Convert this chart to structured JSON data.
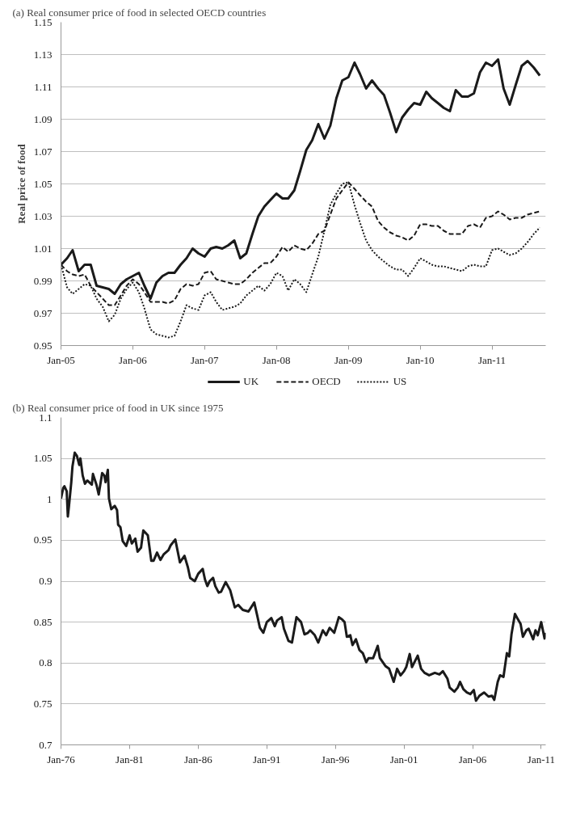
{
  "chart_data": [
    {
      "type": "line",
      "title": "(a) Real consumer price of food in selected OECD countries",
      "ylabel": "Real price of food",
      "x": [
        "2005-01",
        "2005-02",
        "2005-03",
        "2005-04",
        "2005-05",
        "2005-06",
        "2005-07",
        "2005-08",
        "2005-09",
        "2005-10",
        "2005-11",
        "2005-12",
        "2006-01",
        "2006-02",
        "2006-03",
        "2006-04",
        "2006-05",
        "2006-06",
        "2006-07",
        "2006-08",
        "2006-09",
        "2006-10",
        "2006-11",
        "2006-12",
        "2007-01",
        "2007-02",
        "2007-03",
        "2007-04",
        "2007-05",
        "2007-06",
        "2007-07",
        "2007-08",
        "2007-09",
        "2007-10",
        "2007-11",
        "2007-12",
        "2008-01",
        "2008-02",
        "2008-03",
        "2008-04",
        "2008-05",
        "2008-06",
        "2008-07",
        "2008-08",
        "2008-09",
        "2008-10",
        "2008-11",
        "2008-12",
        "2009-01",
        "2009-02",
        "2009-03",
        "2009-04",
        "2009-05",
        "2009-06",
        "2009-07",
        "2009-08",
        "2009-09",
        "2009-10",
        "2009-11",
        "2009-12",
        "2010-01",
        "2010-02",
        "2010-03",
        "2010-04",
        "2010-05",
        "2010-06",
        "2010-07",
        "2010-08",
        "2010-09",
        "2010-10",
        "2010-11",
        "2010-12",
        "2011-01",
        "2011-02",
        "2011-03",
        "2011-04",
        "2011-05",
        "2011-06",
        "2011-07",
        "2011-08",
        "2011-09"
      ],
      "series": [
        {
          "name": "UK",
          "color": "#1a1a1a",
          "line_style": "solid",
          "values": [
            1.0,
            1.004,
            1.009,
            0.996,
            1.0,
            1.0,
            0.987,
            0.986,
            0.985,
            0.982,
            0.988,
            0.991,
            0.993,
            0.995,
            0.987,
            0.979,
            0.989,
            0.993,
            0.995,
            0.995,
            1.0,
            1.004,
            1.01,
            1.007,
            1.005,
            1.01,
            1.011,
            1.01,
            1.012,
            1.015,
            1.004,
            1.007,
            1.019,
            1.03,
            1.036,
            1.04,
            1.044,
            1.041,
            1.041,
            1.046,
            1.058,
            1.071,
            1.077,
            1.087,
            1.078,
            1.086,
            1.103,
            1.114,
            1.116,
            1.125,
            1.118,
            1.109,
            1.114,
            1.109,
            1.105,
            1.094,
            1.082,
            1.091,
            1.096,
            1.1,
            1.099,
            1.107,
            1.103,
            1.1,
            1.097,
            1.095,
            1.108,
            1.104,
            1.104,
            1.106,
            1.119,
            1.125,
            1.123,
            1.127,
            1.109,
            1.099,
            1.111,
            1.123,
            1.126,
            1.122,
            1.117
          ]
        },
        {
          "name": "OECD",
          "color": "#1a1a1a",
          "line_style": "dashed",
          "values": [
            1.0,
            0.996,
            0.994,
            0.993,
            0.994,
            0.987,
            0.983,
            0.979,
            0.975,
            0.975,
            0.981,
            0.987,
            0.991,
            0.988,
            0.983,
            0.977,
            0.977,
            0.977,
            0.976,
            0.978,
            0.985,
            0.988,
            0.987,
            0.988,
            0.995,
            0.996,
            0.991,
            0.99,
            0.989,
            0.988,
            0.988,
            0.991,
            0.995,
            0.998,
            1.001,
            1.001,
            1.005,
            1.011,
            1.008,
            1.012,
            1.01,
            1.009,
            1.013,
            1.019,
            1.021,
            1.031,
            1.041,
            1.046,
            1.051,
            1.047,
            1.043,
            1.039,
            1.036,
            1.027,
            1.023,
            1.02,
            1.018,
            1.017,
            1.015,
            1.018,
            1.025,
            1.025,
            1.024,
            1.024,
            1.021,
            1.019,
            1.019,
            1.019,
            1.024,
            1.025,
            1.023,
            1.029,
            1.03,
            1.033,
            1.031,
            1.028,
            1.029,
            1.029,
            1.031,
            1.032,
            1.033
          ]
        },
        {
          "name": "US",
          "color": "#1a1a1a",
          "line_style": "dotted",
          "values": [
            1.0,
            0.986,
            0.982,
            0.985,
            0.988,
            0.987,
            0.979,
            0.974,
            0.965,
            0.969,
            0.979,
            0.985,
            0.989,
            0.983,
            0.973,
            0.96,
            0.957,
            0.956,
            0.955,
            0.956,
            0.965,
            0.975,
            0.973,
            0.972,
            0.981,
            0.983,
            0.977,
            0.972,
            0.973,
            0.974,
            0.976,
            0.981,
            0.984,
            0.987,
            0.984,
            0.988,
            0.995,
            0.993,
            0.984,
            0.991,
            0.988,
            0.983,
            0.994,
            1.005,
            1.021,
            1.037,
            1.044,
            1.05,
            1.051,
            1.037,
            1.026,
            1.015,
            1.009,
            1.005,
            1.002,
            0.999,
            0.997,
            0.997,
            0.993,
            0.998,
            1.004,
            1.002,
            1.0,
            0.999,
            0.999,
            0.998,
            0.997,
            0.996,
            0.999,
            1.0,
            0.999,
            0.999,
            1.009,
            1.01,
            1.008,
            1.006,
            1.007,
            1.01,
            1.014,
            1.019,
            1.023
          ]
        }
      ],
      "xlim": [
        "2005-01",
        "2011-10"
      ],
      "xticks": [
        {
          "value": "2005-01",
          "label": "Jan-05"
        },
        {
          "value": "2006-01",
          "label": "Jan-06"
        },
        {
          "value": "2007-01",
          "label": "Jan-07"
        },
        {
          "value": "2008-01",
          "label": "Jan-08"
        },
        {
          "value": "2009-01",
          "label": "Jan-09"
        },
        {
          "value": "2010-01",
          "label": "Jan-10"
        },
        {
          "value": "2011-01",
          "label": "Jan-11"
        }
      ],
      "ylim": [
        0.95,
        1.15
      ],
      "yticks": [
        0.95,
        0.97,
        0.99,
        1.01,
        1.03,
        1.05,
        1.07,
        1.09,
        1.11,
        1.13,
        1.15
      ],
      "grid": "y",
      "legend": "bottom"
    },
    {
      "type": "line",
      "title": "(b) Real consumer price of food in UK since 1975",
      "series": [
        {
          "color": "#1a1a1a",
          "line_style": "solid",
          "x": [
            "1976-01",
            "1976-03",
            "1976-04",
            "1976-06",
            "1976-07",
            "1976-08",
            "1976-10",
            "1976-11",
            "1977-01",
            "1977-03",
            "1977-05",
            "1977-06",
            "1977-08",
            "1977-10",
            "1977-12",
            "1978-04",
            "1978-05",
            "1978-08",
            "1978-10",
            "1979-01",
            "1979-03",
            "1979-04",
            "1979-06",
            "1979-07",
            "1979-09",
            "1979-12",
            "1980-02",
            "1980-03",
            "1980-05",
            "1980-07",
            "1980-10",
            "1981-01",
            "1981-03",
            "1981-06",
            "1981-08",
            "1981-11",
            "1982-01",
            "1982-05",
            "1982-08",
            "1982-10",
            "1983-01",
            "1983-04",
            "1983-07",
            "1983-11",
            "1984-01",
            "1984-05",
            "1984-09",
            "1985-01",
            "1985-04",
            "1985-06",
            "1985-10",
            "1986-01",
            "1986-05",
            "1986-07",
            "1986-09",
            "1986-11",
            "1987-02",
            "1987-04",
            "1987-07",
            "1987-09",
            "1988-01",
            "1988-05",
            "1988-09",
            "1988-12",
            "1989-04",
            "1989-09",
            "1990-02",
            "1990-05",
            "1990-07",
            "1990-10",
            "1991-01",
            "1991-05",
            "1991-08",
            "1991-10",
            "1992-02",
            "1992-04",
            "1992-08",
            "1992-11",
            "1993-03",
            "1993-07",
            "1993-10",
            "1994-01",
            "1994-03",
            "1994-07",
            "1994-10",
            "1995-02",
            "1995-05",
            "1995-08",
            "1995-12",
            "1996-04",
            "1996-07",
            "1996-09",
            "1996-11",
            "1997-02",
            "1997-04",
            "1997-07",
            "1997-10",
            "1998-01",
            "1998-04",
            "1998-06",
            "1998-10",
            "1999-02",
            "1999-04",
            "1999-09",
            "1999-12",
            "2000-04",
            "2000-07",
            "2000-10",
            "2001-01",
            "2001-03",
            "2001-06",
            "2001-08",
            "2002-01",
            "2002-04",
            "2002-07",
            "2002-11",
            "2003-04",
            "2003-08",
            "2003-11",
            "2004-03",
            "2004-05",
            "2004-09",
            "2004-12",
            "2005-02",
            "2005-05",
            "2005-08",
            "2005-11",
            "2006-02",
            "2006-04",
            "2006-07",
            "2006-11",
            "2007-03",
            "2007-06",
            "2007-08",
            "2007-11",
            "2008-01",
            "2008-04",
            "2008-07",
            "2008-09",
            "2008-11",
            "2009-02",
            "2009-04",
            "2009-07",
            "2009-09",
            "2009-12",
            "2010-02",
            "2010-06",
            "2010-08",
            "2010-10",
            "2011-01",
            "2011-04",
            "2011-05"
          ],
          "values": [
            1.001,
            1.014,
            1.016,
            1.01,
            0.979,
            0.992,
            1.021,
            1.04,
            1.057,
            1.053,
            1.042,
            1.05,
            1.029,
            1.019,
            1.023,
            1.018,
            1.031,
            1.018,
            1.006,
            1.032,
            1.029,
            1.021,
            1.036,
            1.001,
            0.988,
            0.992,
            0.987,
            0.969,
            0.966,
            0.949,
            0.943,
            0.956,
            0.946,
            0.952,
            0.936,
            0.941,
            0.962,
            0.956,
            0.925,
            0.925,
            0.935,
            0.926,
            0.933,
            0.938,
            0.944,
            0.951,
            0.923,
            0.931,
            0.917,
            0.904,
            0.9,
            0.909,
            0.915,
            0.902,
            0.894,
            0.9,
            0.904,
            0.894,
            0.886,
            0.887,
            0.899,
            0.889,
            0.868,
            0.871,
            0.865,
            0.863,
            0.874,
            0.856,
            0.843,
            0.837,
            0.85,
            0.855,
            0.845,
            0.852,
            0.856,
            0.842,
            0.827,
            0.825,
            0.856,
            0.85,
            0.835,
            0.837,
            0.84,
            0.834,
            0.825,
            0.84,
            0.834,
            0.843,
            0.837,
            0.856,
            0.853,
            0.85,
            0.832,
            0.834,
            0.822,
            0.829,
            0.816,
            0.812,
            0.801,
            0.806,
            0.806,
            0.821,
            0.806,
            0.796,
            0.793,
            0.777,
            0.793,
            0.785,
            0.79,
            0.795,
            0.811,
            0.795,
            0.809,
            0.793,
            0.788,
            0.785,
            0.788,
            0.786,
            0.79,
            0.781,
            0.77,
            0.765,
            0.77,
            0.777,
            0.768,
            0.764,
            0.762,
            0.767,
            0.754,
            0.76,
            0.764,
            0.759,
            0.76,
            0.755,
            0.777,
            0.785,
            0.783,
            0.812,
            0.808,
            0.835,
            0.86,
            0.855,
            0.848,
            0.832,
            0.84,
            0.842,
            0.829,
            0.84,
            0.834,
            0.85,
            0.83,
            0.837
          ]
        }
      ],
      "xlim": [
        "1976-01",
        "2011-05"
      ],
      "xticks": [
        {
          "value": "1976-01",
          "label": "Jan-76"
        },
        {
          "value": "1981-01",
          "label": "Jan-81"
        },
        {
          "value": "1986-01",
          "label": "Jan-86"
        },
        {
          "value": "1991-01",
          "label": "Jan-91"
        },
        {
          "value": "1996-01",
          "label": "Jan-96"
        },
        {
          "value": "2001-01",
          "label": "Jan-01"
        },
        {
          "value": "2006-01",
          "label": "Jan-06"
        },
        {
          "value": "2011-01",
          "label": "Jan-11"
        }
      ],
      "ylim": [
        0.7,
        1.1
      ],
      "yticks": [
        0.7,
        0.75,
        0.8,
        0.85,
        0.9,
        0.95,
        1,
        1.05,
        1.1
      ],
      "grid": "y"
    }
  ]
}
